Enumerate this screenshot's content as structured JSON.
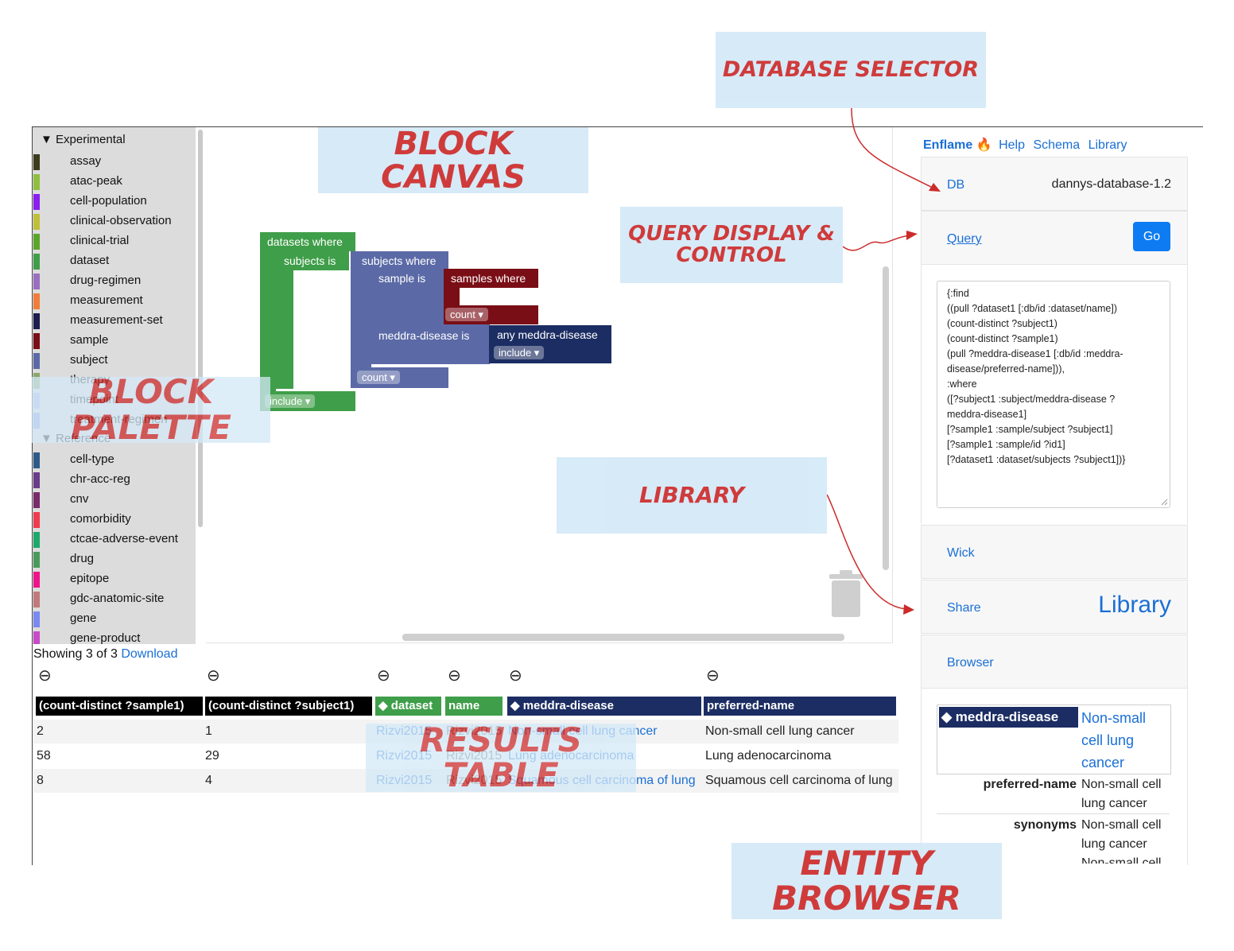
{
  "callouts": {
    "database_selector": "DATABASE SELECTOR",
    "block_canvas": "BLOCK CANVAS",
    "query_display": "QUERY DISPLAY &",
    "query_control": "CONTROL",
    "library": "LIBRARY",
    "block": "BLOCK",
    "palette": "PALETTE",
    "results_table": "RESULTS TABLE",
    "entity": "ENTITY",
    "browser": "BROWSER"
  },
  "palette": {
    "experimental_heading": "▼ Experimental",
    "experimental_items": [
      {
        "label": "assay",
        "color": "#3d3d1c"
      },
      {
        "label": "atac-peak",
        "color": "#8fbf3f"
      },
      {
        "label": "cell-population",
        "color": "#8b1df0"
      },
      {
        "label": "clinical-observation",
        "color": "#bfbf3a"
      },
      {
        "label": "clinical-trial",
        "color": "#5aa62a"
      },
      {
        "label": "dataset",
        "color": "#3f9e49"
      },
      {
        "label": "drug-regimen",
        "color": "#9a6fbf"
      },
      {
        "label": "measurement",
        "color": "#f07d3a"
      },
      {
        "label": "measurement-set",
        "color": "#1c1c4d"
      },
      {
        "label": "sample",
        "color": "#7a0e16"
      },
      {
        "label": "subject",
        "color": "#5b6aa6"
      },
      {
        "label": "therapy",
        "color": "#8aa86a"
      },
      {
        "label": "timepoint",
        "color": "#aab3e6"
      },
      {
        "label": "treatment-regimen",
        "color": "#8f9ce0"
      }
    ],
    "reference_heading": "▼ Reference",
    "reference_items": [
      {
        "label": "cell-type",
        "color": "#2e5a8a"
      },
      {
        "label": "chr-acc-reg",
        "color": "#6b3c8a"
      },
      {
        "label": "cnv",
        "color": "#7a2b6a"
      },
      {
        "label": "comorbidity",
        "color": "#f03a4d"
      },
      {
        "label": "ctcae-adverse-event",
        "color": "#1ea86a"
      },
      {
        "label": "drug",
        "color": "#4a9a5a"
      },
      {
        "label": "epitope",
        "color": "#f0148a"
      },
      {
        "label": "gdc-anatomic-site",
        "color": "#c07a7a"
      },
      {
        "label": "gene",
        "color": "#7a8af0"
      },
      {
        "label": "gene-product",
        "color": "#c84ac8"
      }
    ]
  },
  "blocks": {
    "datasets_where": "datasets where",
    "subjects_is": "subjects is",
    "subjects_where": "subjects where",
    "sample_is": "sample is",
    "samples_where": "samples where",
    "count1": "count ▾",
    "meddra_disease_is": "meddra-disease is",
    "any_meddra_disease": "any meddra-disease",
    "include1": "include ▾",
    "count2": "count ▾",
    "include2": "include ▾",
    "colors": {
      "dataset": "#3f9e49",
      "subject": "#5b6aa6",
      "sample": "#7a0e16",
      "meddra": "#1c2d63"
    }
  },
  "results": {
    "showing": "Showing 3 of 3",
    "download": "Download",
    "minus_icon": "⊖",
    "headers": [
      {
        "label": "(count-distinct ?sample1)",
        "color": "#000000"
      },
      {
        "label": "(count-distinct ?subject1)",
        "color": "#000000"
      },
      {
        "label": "◆ dataset",
        "color": "#3f9e49"
      },
      {
        "label": "name",
        "color": "#3f9e49"
      },
      {
        "label": "◆ meddra-disease",
        "color": "#1c2d63"
      },
      {
        "label": "preferred-name",
        "color": "#1c2d63"
      }
    ],
    "rows": [
      [
        "2",
        "1",
        "Rizvi2015",
        "Rizvi2015",
        "Non-small cell lung cancer",
        "Non-small cell lung cancer"
      ],
      [
        "58",
        "29",
        "Rizvi2015",
        "Rizvi2015",
        "Lung adenocarcinoma",
        "Lung adenocarcinoma"
      ],
      [
        "8",
        "4",
        "Rizvi2015",
        "Rizvi2015",
        "Squamous cell carcinoma of lung",
        "Squamous cell carcinoma of lung"
      ]
    ]
  },
  "nav": {
    "brand": "Enflame",
    "fire_icon": "🔥",
    "help": "Help",
    "schema": "Schema",
    "library": "Library"
  },
  "db": {
    "label": "DB",
    "value": "dannys-database-1.2"
  },
  "query": {
    "label": "Query",
    "go": "Go",
    "lines": [
      "{:find",
      " ((pull ?dataset1 [:db/id :dataset/name])",
      "  (count-distinct ?subject1)",
      "  (count-distinct ?sample1)",
      "  (pull ?meddra-disease1 [:db/id :meddra-",
      "disease/preferred-name])),",
      " :where",
      " ([?subject1 :subject/meddra-disease ?",
      "meddra-disease1]",
      "  [?sample1 :sample/subject ?subject1]",
      "  [?sample1 :sample/id ?id1]",
      "  [?dataset1 :dataset/subjects ?subject1])}"
    ]
  },
  "panels": {
    "wick": "Wick",
    "share": "Share",
    "share_library": "Library",
    "browser": "Browser"
  },
  "entity": {
    "header": "◆ meddra-disease",
    "header_value_lines": [
      "Non-small",
      "cell lung",
      "cancer"
    ],
    "preferred_name_label": "preferred-name",
    "preferred_name_lines": [
      "Non-small cell",
      "lung cancer"
    ],
    "synonyms_label": "synonyms",
    "synonyms_lines": [
      "Non-small cell",
      "lung cancer",
      "Non-small cell"
    ]
  }
}
